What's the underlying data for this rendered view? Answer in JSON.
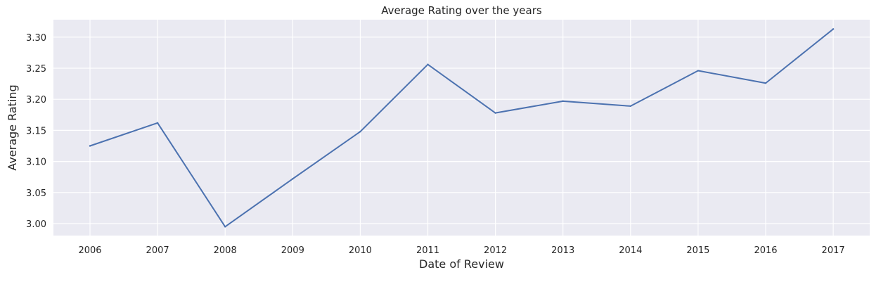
{
  "chart_data": {
    "type": "line",
    "title": "Average Rating over the years",
    "xlabel": "Date of Review",
    "ylabel": "Average Rating",
    "x": [
      "2006",
      "2007",
      "2008",
      "2009",
      "2010",
      "2011",
      "2012",
      "2013",
      "2014",
      "2015",
      "2016",
      "2017"
    ],
    "series": [
      {
        "values": [
          3.125,
          3.162,
          2.995,
          3.072,
          3.148,
          3.256,
          3.178,
          3.197,
          3.189,
          3.246,
          3.226,
          3.313
        ]
      }
    ],
    "yticks": [
      "3.00",
      "3.05",
      "3.10",
      "3.15",
      "3.20",
      "3.25",
      "3.30"
    ],
    "ylim": [
      2.9785,
      3.3275
    ],
    "grid": true,
    "colors": {
      "background": "#eaeaf2",
      "grid": "#ffffff",
      "line": "#4c72b0",
      "text": "#262626"
    }
  }
}
